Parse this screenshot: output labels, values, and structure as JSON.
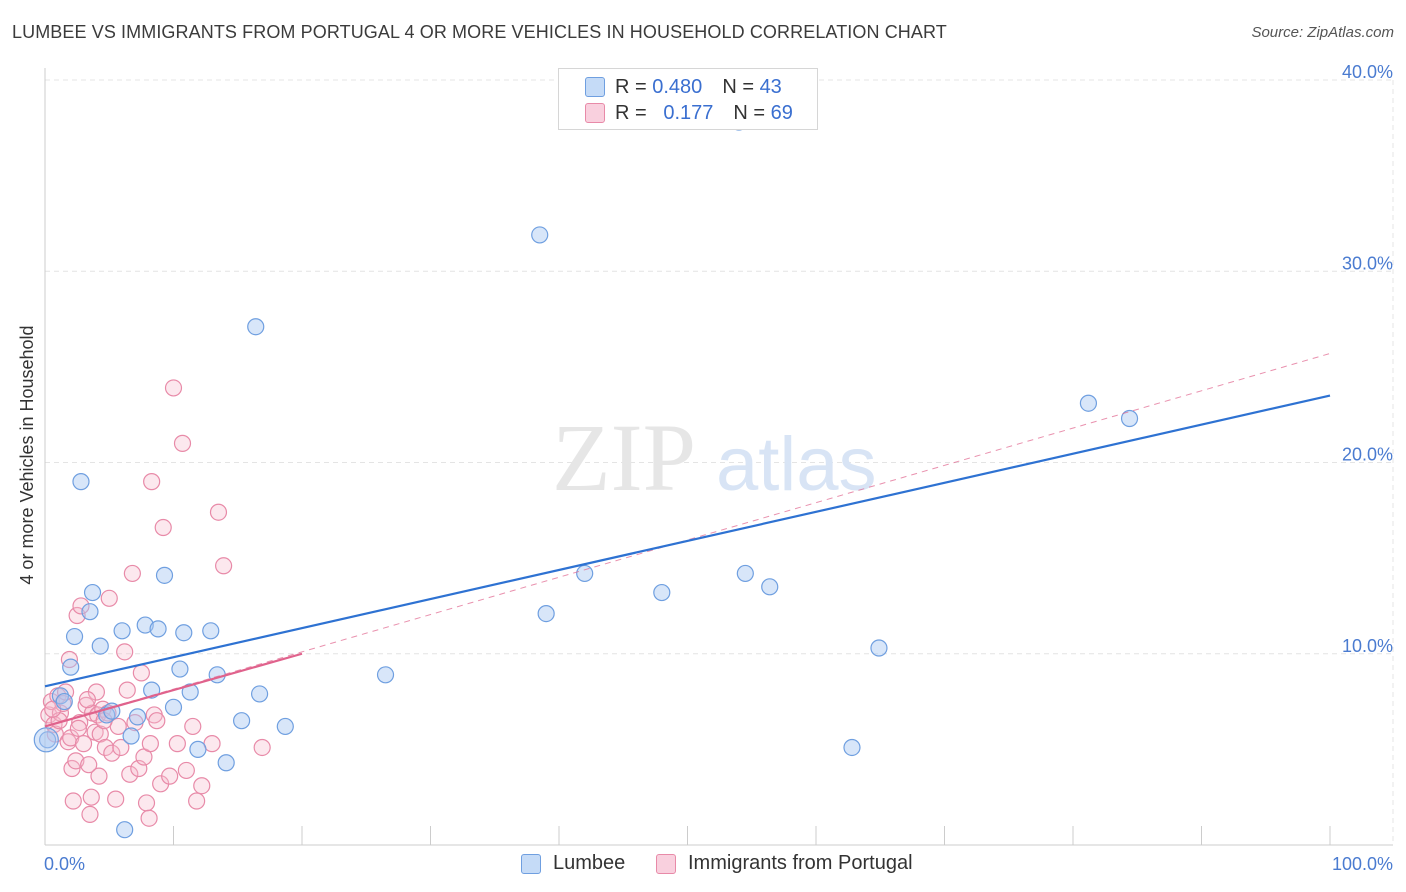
{
  "title": "LUMBEE VS IMMIGRANTS FROM PORTUGAL 4 OR MORE VEHICLES IN HOUSEHOLD CORRELATION CHART",
  "source": "Source: ZipAtlas.com",
  "watermark": {
    "zip": "ZIP",
    "atlas": "atlas"
  },
  "legend": {
    "rows": [
      {
        "r_label": "R =",
        "r_value": "0.480",
        "n_label": "N =",
        "n_value": "43"
      },
      {
        "r_label": "R =",
        "r_value": "0.177",
        "n_label": "N =",
        "n_value": "69"
      }
    ]
  },
  "colors": {
    "lumbee_fill": "#a9c8f2",
    "lumbee_stroke": "#6f9fe0",
    "lumbee_line": "#2e72d2",
    "portugal_fill": "#f6bccf",
    "portugal_stroke": "#e88aa8",
    "portugal_line": "#e0628c",
    "tick": "#4a7bd0",
    "grid": "#e4e4e4"
  },
  "chart_data": {
    "type": "scatter",
    "xlabel": "",
    "ylabel": "4 or more Vehicles in Household",
    "xlim": [
      0,
      100
    ],
    "ylim": [
      0,
      40
    ],
    "x_tick_labels": [
      "0.0%",
      "100.0%"
    ],
    "y_ticks": [
      10,
      20,
      30,
      40
    ],
    "y_tick_labels": [
      "10.0%",
      "20.0%",
      "30.0%",
      "40.0%"
    ],
    "grid": true,
    "legend_position": "bottom",
    "series": [
      {
        "name": "Lumbee",
        "r": 0.48,
        "n": 43,
        "trend": {
          "x": [
            0,
            100
          ],
          "y": [
            8.3,
            23.5
          ],
          "style": "solid"
        },
        "points": [
          [
            0.2,
            5.5
          ],
          [
            1.2,
            7.8
          ],
          [
            2.0,
            9.3
          ],
          [
            2.3,
            10.9
          ],
          [
            2.8,
            19.0
          ],
          [
            3.5,
            12.2
          ],
          [
            3.7,
            13.2
          ],
          [
            4.3,
            10.4
          ],
          [
            4.8,
            6.8
          ],
          [
            5.2,
            7.0
          ],
          [
            6.0,
            11.2
          ],
          [
            6.7,
            5.7
          ],
          [
            7.2,
            6.7
          ],
          [
            7.8,
            11.5
          ],
          [
            8.3,
            8.1
          ],
          [
            8.8,
            11.3
          ],
          [
            9.3,
            14.1
          ],
          [
            10.0,
            7.2
          ],
          [
            10.5,
            9.2
          ],
          [
            10.8,
            11.1
          ],
          [
            11.3,
            8.0
          ],
          [
            11.9,
            5.0
          ],
          [
            12.9,
            11.2
          ],
          [
            13.4,
            8.9
          ],
          [
            14.1,
            4.3
          ],
          [
            15.3,
            6.5
          ],
          [
            16.4,
            27.1
          ],
          [
            16.7,
            7.9
          ],
          [
            18.7,
            6.2
          ],
          [
            26.5,
            8.9
          ],
          [
            38.5,
            31.9
          ],
          [
            39.0,
            12.1
          ],
          [
            42.0,
            14.2
          ],
          [
            48.0,
            13.2
          ],
          [
            54.0,
            37.8
          ],
          [
            54.5,
            14.2
          ],
          [
            56.4,
            13.5
          ],
          [
            62.8,
            5.1
          ],
          [
            64.9,
            10.3
          ],
          [
            81.2,
            23.1
          ],
          [
            84.4,
            22.3
          ],
          [
            6.2,
            0.8
          ],
          [
            1.5,
            7.5
          ]
        ]
      },
      {
        "name": "Immigrants from Portugal",
        "r": 0.177,
        "n": 69,
        "trend": {
          "x": [
            0,
            20
          ],
          "y": [
            6.2,
            10.0
          ],
          "style": "solid",
          "extended": {
            "x": [
              0,
              100
            ],
            "y": [
              6.2,
              25.7
            ],
            "style": "dashed"
          }
        },
        "points": [
          [
            0.3,
            6.8
          ],
          [
            0.5,
            7.5
          ],
          [
            0.7,
            6.3
          ],
          [
            0.8,
            5.8
          ],
          [
            1.0,
            7.8
          ],
          [
            1.2,
            6.9
          ],
          [
            1.4,
            7.4
          ],
          [
            1.6,
            8.0
          ],
          [
            1.8,
            5.4
          ],
          [
            1.9,
            9.7
          ],
          [
            2.0,
            5.6
          ],
          [
            2.1,
            4.0
          ],
          [
            2.2,
            2.3
          ],
          [
            2.4,
            4.4
          ],
          [
            2.5,
            12.0
          ],
          [
            2.7,
            6.4
          ],
          [
            2.8,
            12.5
          ],
          [
            3.0,
            5.3
          ],
          [
            3.2,
            7.3
          ],
          [
            3.4,
            4.2
          ],
          [
            3.5,
            1.6
          ],
          [
            3.6,
            2.5
          ],
          [
            3.7,
            6.9
          ],
          [
            3.9,
            5.9
          ],
          [
            4.0,
            8.0
          ],
          [
            4.1,
            6.8
          ],
          [
            4.2,
            3.6
          ],
          [
            4.3,
            5.8
          ],
          [
            4.5,
            7.1
          ],
          [
            4.7,
            5.1
          ],
          [
            4.9,
            6.9
          ],
          [
            5.0,
            12.9
          ],
          [
            5.2,
            4.8
          ],
          [
            5.5,
            2.4
          ],
          [
            5.7,
            6.2
          ],
          [
            5.9,
            5.1
          ],
          [
            6.2,
            10.1
          ],
          [
            6.4,
            8.1
          ],
          [
            6.6,
            3.7
          ],
          [
            6.8,
            14.2
          ],
          [
            7.0,
            6.4
          ],
          [
            7.3,
            4.0
          ],
          [
            7.5,
            9.0
          ],
          [
            7.7,
            4.6
          ],
          [
            7.9,
            2.2
          ],
          [
            8.1,
            1.4
          ],
          [
            8.2,
            5.3
          ],
          [
            8.3,
            19.0
          ],
          [
            8.5,
            6.8
          ],
          [
            8.7,
            6.5
          ],
          [
            9.0,
            3.2
          ],
          [
            9.2,
            16.6
          ],
          [
            9.7,
            3.6
          ],
          [
            10.0,
            23.9
          ],
          [
            10.3,
            5.3
          ],
          [
            10.7,
            21.0
          ],
          [
            11.0,
            3.9
          ],
          [
            11.5,
            6.2
          ],
          [
            11.8,
            2.3
          ],
          [
            12.2,
            3.1
          ],
          [
            13.0,
            5.3
          ],
          [
            13.5,
            17.4
          ],
          [
            13.9,
            14.6
          ],
          [
            16.9,
            5.1
          ],
          [
            2.6,
            6.1
          ],
          [
            1.1,
            6.5
          ],
          [
            0.6,
            7.1
          ],
          [
            3.3,
            7.6
          ],
          [
            4.6,
            6.5
          ]
        ]
      }
    ]
  }
}
